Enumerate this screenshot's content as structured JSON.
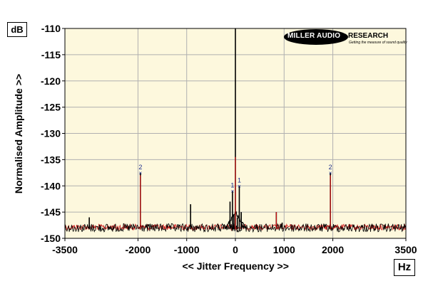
{
  "units": {
    "y": "dB",
    "x": "Hz"
  },
  "logo": {
    "brand_dark": "MILLER AUDIO",
    "brand_light": "RESEARCH",
    "tagline": "Getting the measure of sound quality"
  },
  "colors": {
    "plot_bg": "#fdf8dd",
    "grid": "#b0b0b0",
    "trace_primary": "#000000",
    "trace_secondary": "#d21414",
    "marker": "#1b2c8c"
  },
  "chart_data": {
    "type": "line",
    "title": "",
    "xlabel": "<< Jitter Frequency >>",
    "ylabel": "Normalised Amplitude >>",
    "xlim": [
      -3500,
      3500
    ],
    "ylim": [
      -150,
      -110
    ],
    "grid": true,
    "x_ticks": [
      -3500,
      -2000,
      -1000,
      0,
      1000,
      2000,
      3500
    ],
    "x_tick_labels": [
      "-3500",
      "-2000",
      "-1000",
      "0",
      "1000",
      "2000",
      "3500"
    ],
    "y_ticks": [
      -110,
      -115,
      -120,
      -125,
      -130,
      -135,
      -140,
      -145,
      -150
    ],
    "y_tick_labels": [
      "-110",
      "-115",
      "-120",
      "-125",
      "-130",
      "-135",
      "-140",
      "-145",
      "-150"
    ],
    "noise_floor_db": -148,
    "series": [
      {
        "name": "",
        "peaks": [
          {
            "x": -3000,
            "y": -146
          },
          {
            "x": -1950,
            "y": -137.5
          },
          {
            "x": -920,
            "y": -143.5
          },
          {
            "x": -240,
            "y": -147.5
          },
          {
            "x": -110,
            "y": -143
          },
          {
            "x": -60,
            "y": -141
          },
          {
            "x": -30,
            "y": -145.5
          },
          {
            "x": 0,
            "y": -110
          },
          {
            "x": 40,
            "y": -146
          },
          {
            "x": 80,
            "y": -140
          },
          {
            "x": 120,
            "y": -145
          },
          {
            "x": 840,
            "y": -145
          },
          {
            "x": 960,
            "y": -147
          },
          {
            "x": 1950,
            "y": -137.5
          }
        ]
      },
      {
        "name": "",
        "peaks": [
          {
            "x": -1950,
            "y": -138
          },
          {
            "x": 0,
            "y": -134.5
          },
          {
            "x": 840,
            "y": -145
          },
          {
            "x": 1950,
            "y": -138
          }
        ]
      }
    ],
    "markers": [
      {
        "label": "2",
        "x": -1950,
        "y": -137.5
      },
      {
        "label": "1",
        "x": -60,
        "y": -141
      },
      {
        "label": "1",
        "x": 80,
        "y": -140
      },
      {
        "label": "2",
        "x": 1950,
        "y": -137.5
      }
    ]
  }
}
